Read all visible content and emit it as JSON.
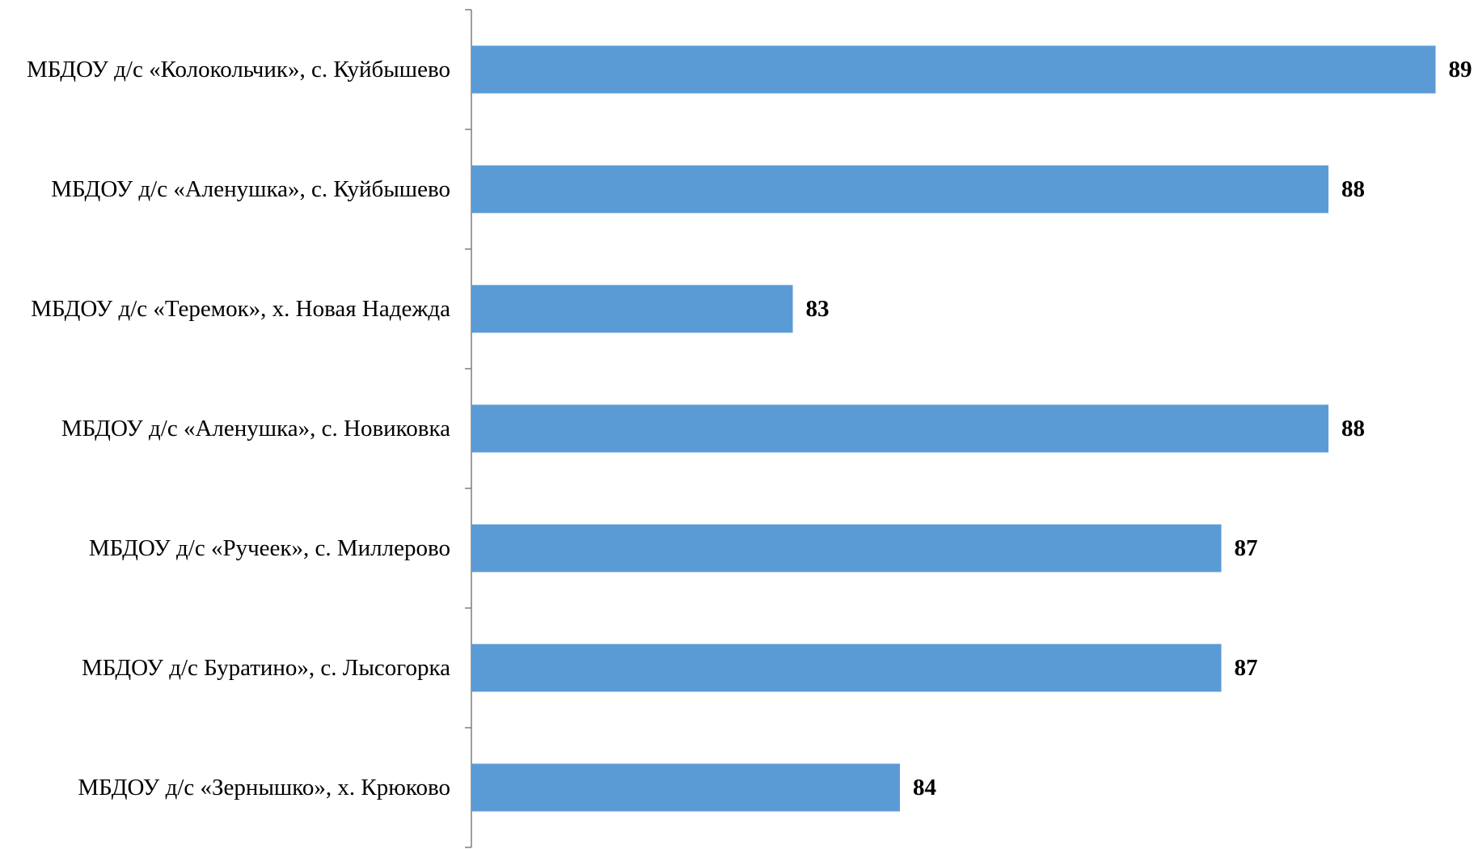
{
  "chart_data": {
    "type": "bar",
    "orientation": "horizontal",
    "title": "",
    "xlabel": "",
    "ylabel": "",
    "categories": [
      "МБДОУ д/с «Колокольчик», с. Куйбышево",
      "МБДОУ д/с «Аленушка», с. Куйбышево",
      "МБДОУ д/с «Теремок», х. Новая Надежда",
      "МБДОУ д/с «Аленушка», с. Новиковка",
      "МБДОУ д/с «Ручеек», с. Миллерово",
      "МБДОУ д/с Буратино», с. Лысогорка",
      "МБДОУ д/с «Зернышко», х. Крюково"
    ],
    "values": [
      89,
      88,
      83,
      88,
      87,
      87,
      84
    ],
    "xlim": [
      80,
      89
    ],
    "bar_color": "#5b9bd5",
    "gridlines": false,
    "legend": "none",
    "data_labels": true
  }
}
